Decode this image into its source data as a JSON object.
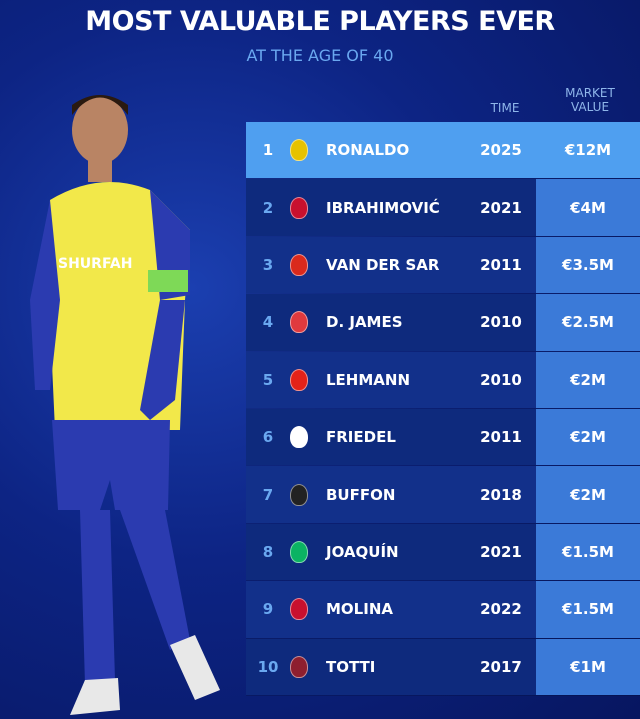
{
  "title": "MOST VALUABLE PLAYERS EVER",
  "subtitle": "AT THE AGE OF 40",
  "headers": {
    "time": "TIME",
    "market_value_1": "MARKET",
    "market_value_2": "VALUE"
  },
  "jersey_text": "SHURFAH",
  "colors": {
    "background": "#0d2484",
    "highlight_row": "#4f9ff0",
    "value_cell": "#3b7ad8",
    "row": "#0e2a7d",
    "subtitle": "#6aa8f0"
  },
  "rows": [
    {
      "rank": "1",
      "name": "RONALDO",
      "year": "2025",
      "value": "€12M",
      "crest": "#e6c200"
    },
    {
      "rank": "2",
      "name": "IBRAHIMOVIĆ",
      "year": "2021",
      "value": "€4M",
      "crest": "#c8102e"
    },
    {
      "rank": "3",
      "name": "VAN DER SAR",
      "year": "2011",
      "value": "€3.5M",
      "crest": "#da291c"
    },
    {
      "rank": "4",
      "name": "D. JAMES",
      "year": "2010",
      "value": "€2.5M",
      "crest": "#e03a3e"
    },
    {
      "rank": "5",
      "name": "LEHMANN",
      "year": "2010",
      "value": "€2M",
      "crest": "#e32219"
    },
    {
      "rank": "6",
      "name": "FRIEDEL",
      "year": "2011",
      "value": "€2M",
      "crest": "#ffffff"
    },
    {
      "rank": "7",
      "name": "BUFFON",
      "year": "2018",
      "value": "€2M",
      "crest": "#222222"
    },
    {
      "rank": "8",
      "name": "JOAQUÍN",
      "year": "2021",
      "value": "€1.5M",
      "crest": "#0bb363"
    },
    {
      "rank": "9",
      "name": "MOLINA",
      "year": "2022",
      "value": "€1.5M",
      "crest": "#c8102e"
    },
    {
      "rank": "10",
      "name": "TOTTI",
      "year": "2017",
      "value": "€1M",
      "crest": "#8e1f2f"
    }
  ]
}
